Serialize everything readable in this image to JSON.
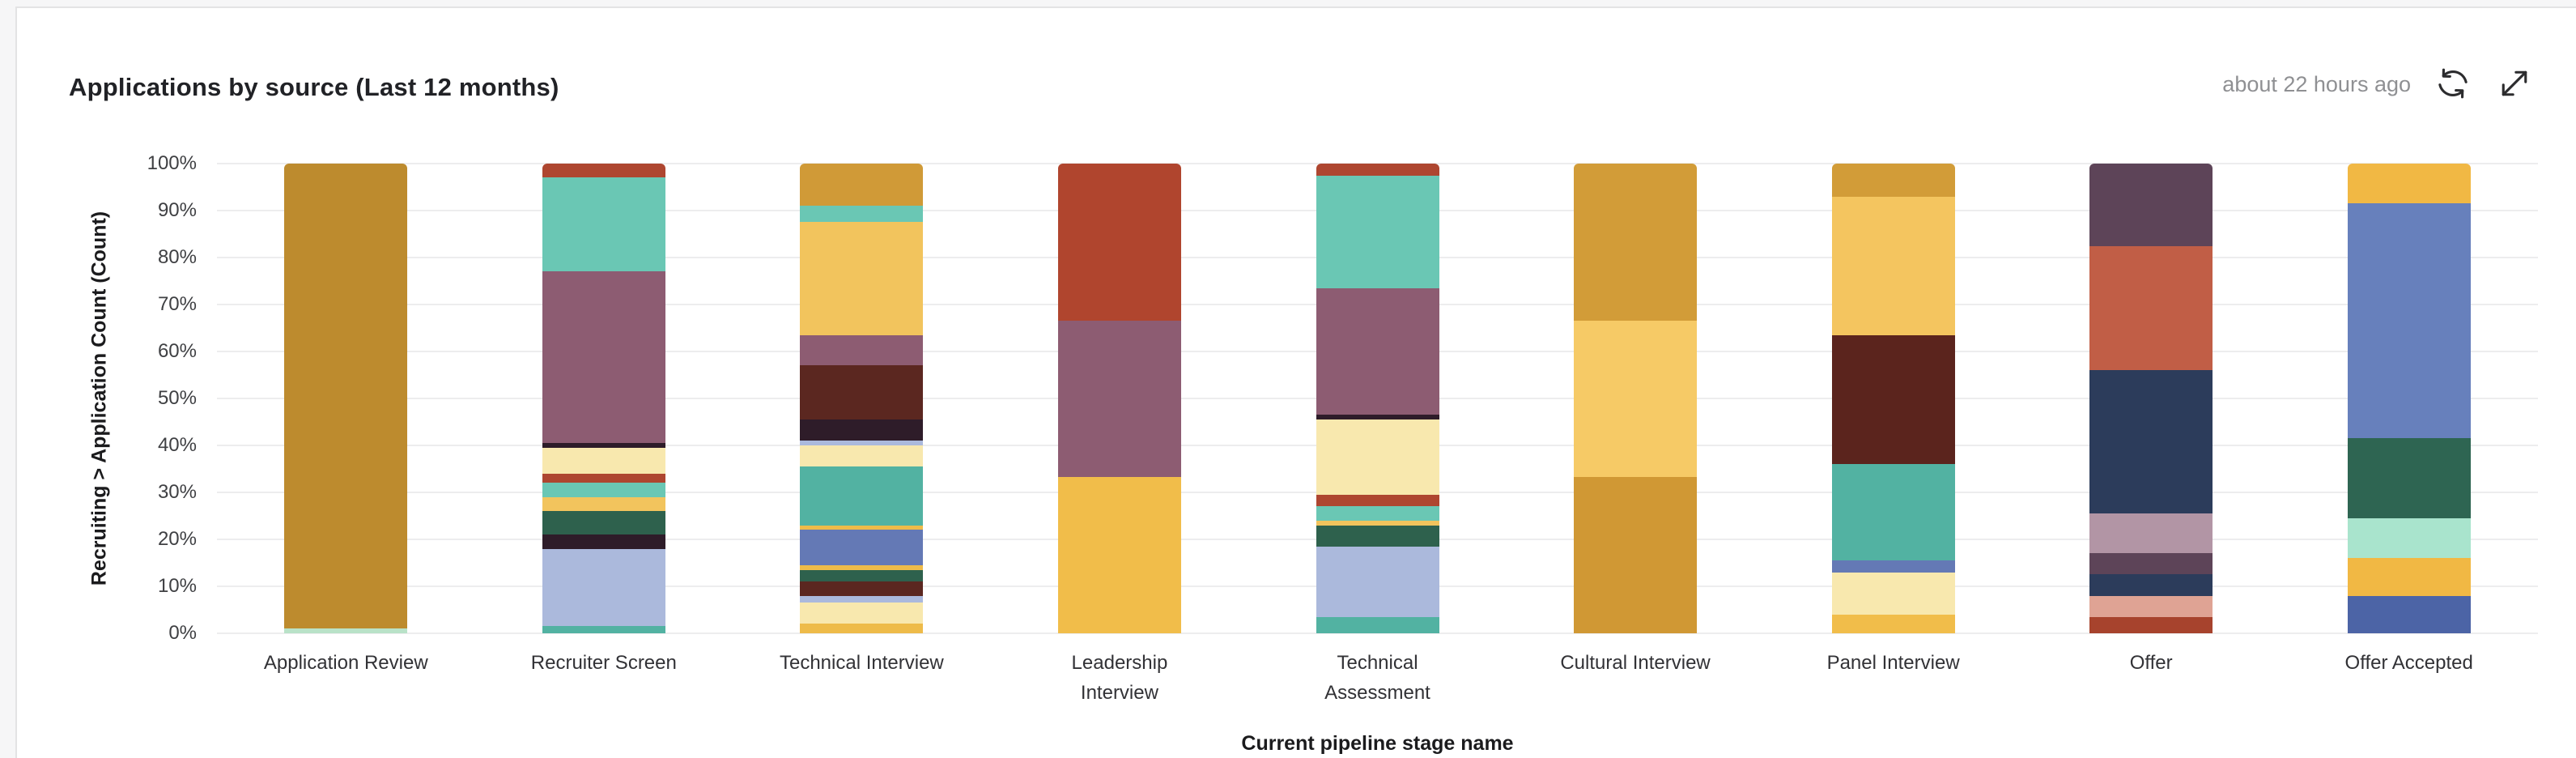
{
  "header": {
    "title": "Applications by source (Last 12 months)",
    "last_updated": "about 22 hours ago"
  },
  "icons": {
    "refresh": "refresh-icon",
    "expand": "expand-icon"
  },
  "colors": {
    "card_background": "#ffffff",
    "page_background": "#f6f6f7",
    "card_border": "#e3e3e4",
    "gridline": "#ededee",
    "tick_text": "#3f4043",
    "title_text": "#212226",
    "timestamp_text": "#8f9093"
  },
  "chart_data": {
    "type": "bar",
    "stacked": true,
    "percent_stacked": true,
    "title": "Applications by source (Last 12 months)",
    "xlabel": "Current pipeline stage name",
    "ylabel": "Recruiting > Application Count (Count)",
    "ylim": [
      0,
      100
    ],
    "grid": true,
    "legend": false,
    "yticks": [
      "0%",
      "10%",
      "20%",
      "30%",
      "40%",
      "50%",
      "60%",
      "70%",
      "80%",
      "90%",
      "100%"
    ],
    "note": "Each bar lists segments top-to-bottom as rendered; values are percent of bar height. No legend/series names are visible in the screenshot.",
    "bars": [
      {
        "category": "Application Review",
        "segments": [
          {
            "color": "#bd8b2e",
            "value": 99
          },
          {
            "color": "#b9e2c8",
            "value": 1
          }
        ]
      },
      {
        "category": "Recruiter Screen",
        "segments": [
          {
            "color": "#ae4630",
            "value": 3
          },
          {
            "color": "#6ac7b4",
            "value": 20
          },
          {
            "color": "#8d5c72",
            "value": 36.5
          },
          {
            "color": "#2e1c29",
            "value": 1
          },
          {
            "color": "#f8e8ae",
            "value": 5.5
          },
          {
            "color": "#ae4630",
            "value": 2
          },
          {
            "color": "#6ac7b4",
            "value": 3
          },
          {
            "color": "#f2c45d",
            "value": 3
          },
          {
            "color": "#2e614d",
            "value": 5
          },
          {
            "color": "#2e1c29",
            "value": 3
          },
          {
            "color": "#abb9dc",
            "value": 16.5
          },
          {
            "color": "#52b2a2",
            "value": 1.5
          }
        ]
      },
      {
        "category": "Technical Interview",
        "segments": [
          {
            "color": "#d09a37",
            "value": 9
          },
          {
            "color": "#6ac7b4",
            "value": 3.5
          },
          {
            "color": "#f2c45d",
            "value": 24
          },
          {
            "color": "#8d5c72",
            "value": 6.5
          },
          {
            "color": "#5b2720",
            "value": 11.5
          },
          {
            "color": "#2e1c29",
            "value": 4.5
          },
          {
            "color": "#abb9dc",
            "value": 1
          },
          {
            "color": "#f8e8ae",
            "value": 4.5
          },
          {
            "color": "#52b2a2",
            "value": 12.5
          },
          {
            "color": "#eebb49",
            "value": 1
          },
          {
            "color": "#6479b5",
            "value": 7.5
          },
          {
            "color": "#eebb49",
            "value": 1
          },
          {
            "color": "#2e614d",
            "value": 2.5
          },
          {
            "color": "#5b2720",
            "value": 3
          },
          {
            "color": "#abb9dc",
            "value": 1.5
          },
          {
            "color": "#f8e8ae",
            "value": 4.5
          },
          {
            "color": "#eebb49",
            "value": 2
          }
        ]
      },
      {
        "category": "Leadership\nInterview",
        "segments": [
          {
            "color": "#b0452e",
            "value": 33.4
          },
          {
            "color": "#8d5c72",
            "value": 33.3
          },
          {
            "color": "#f1bd4a",
            "value": 33.3
          }
        ]
      },
      {
        "category": "Technical\nAssessment",
        "segments": [
          {
            "color": "#ae4630",
            "value": 2.5
          },
          {
            "color": "#6ac7b4",
            "value": 24
          },
          {
            "color": "#8d5c72",
            "value": 27
          },
          {
            "color": "#2e1c29",
            "value": 1
          },
          {
            "color": "#f8e8ae",
            "value": 16
          },
          {
            "color": "#ae4630",
            "value": 2.5
          },
          {
            "color": "#6ac7b4",
            "value": 3
          },
          {
            "color": "#f2c45d",
            "value": 1
          },
          {
            "color": "#2e614d",
            "value": 4.5
          },
          {
            "color": "#abb9dc",
            "value": 15
          },
          {
            "color": "#52b2a2",
            "value": 3.5
          }
        ]
      },
      {
        "category": "Cultural Interview",
        "segments": [
          {
            "color": "#d29c38",
            "value": 33.4
          },
          {
            "color": "#f6ca66",
            "value": 33.3
          },
          {
            "color": "#d09834",
            "value": 33.3
          }
        ]
      },
      {
        "category": "Panel Interview",
        "segments": [
          {
            "color": "#d29c38",
            "value": 7
          },
          {
            "color": "#f4c55f",
            "value": 29.5
          },
          {
            "color": "#5b241d",
            "value": 27.5
          },
          {
            "color": "#52b2a2",
            "value": 20.5
          },
          {
            "color": "#6479b5",
            "value": 2.5
          },
          {
            "color": "#f8e8ae",
            "value": 9
          },
          {
            "color": "#f1bd4a",
            "value": 4
          }
        ]
      },
      {
        "category": "Offer",
        "segments": [
          {
            "color": "#5d4458",
            "value": 17.5
          },
          {
            "color": "#c15e46",
            "value": 26.5
          },
          {
            "color": "#2c3c5b",
            "value": 30.5
          },
          {
            "color": "#b295a5",
            "value": 8.5
          },
          {
            "color": "#5d4458",
            "value": 4.5
          },
          {
            "color": "#2c3c5b",
            "value": 4.5
          },
          {
            "color": "#dfa394",
            "value": 4.5
          },
          {
            "color": "#a7432d",
            "value": 3.5
          }
        ]
      },
      {
        "category": "Offer Accepted",
        "segments": [
          {
            "color": "#f1b844",
            "value": 8.5
          },
          {
            "color": "#6780bc",
            "value": 50
          },
          {
            "color": "#2e6552",
            "value": 17
          },
          {
            "color": "#a9e4cd",
            "value": 8.5
          },
          {
            "color": "#f1b844",
            "value": 8
          },
          {
            "color": "#4c64a6",
            "value": 8
          }
        ]
      }
    ]
  }
}
